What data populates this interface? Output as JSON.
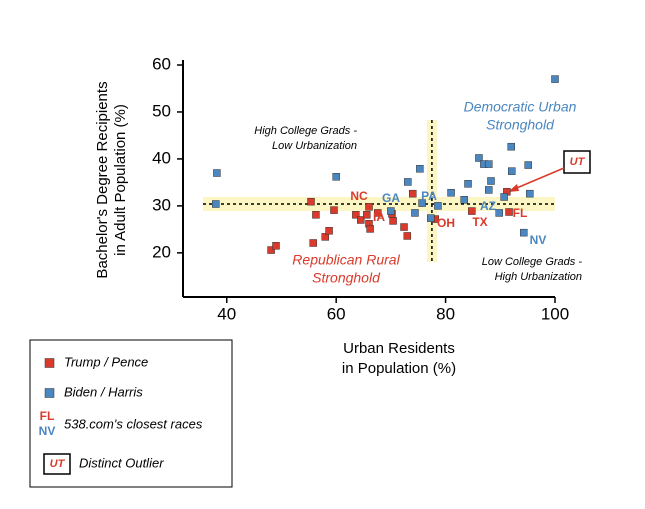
{
  "chart_data": {
    "type": "scatter",
    "x_label": [
      "Urban Residents",
      "in Population (%)"
    ],
    "y_label": [
      "Bachelor's Degree Recipients",
      "in Adult Population (%)"
    ],
    "xlim": [
      32,
      100
    ],
    "ylim": [
      10.6,
      60
    ],
    "xticks": [
      40,
      60,
      80,
      100
    ],
    "yticks": [
      20,
      30,
      40,
      50,
      60
    ],
    "reference_lines": {
      "x": 77.5,
      "y": 30.4
    },
    "series": [
      {
        "name": "Trump / Pence",
        "color": "#d93a2b",
        "x": [
          48.1,
          49.0,
          55.4,
          56.3,
          55.8,
          58.0,
          58.7,
          59.6,
          63.6,
          64.5,
          65.6,
          66.0,
          66.0,
          66.2,
          67.6,
          70.2,
          70.4,
          72.4,
          73.0,
          74.0,
          78.1,
          84.8,
          91.2,
          91.6
        ],
        "values": [
          20.6,
          21.5,
          30.9,
          28.1,
          22.1,
          23.4,
          24.7,
          29.1,
          28.1,
          27.0,
          28.1,
          29.8,
          26.2,
          25.1,
          28.5,
          28.3,
          26.8,
          25.5,
          23.6,
          32.6,
          27.2,
          28.9,
          33.0,
          28.7
        ]
      },
      {
        "name": "Biden / Harris",
        "color": "#4a86c0",
        "x": [
          38.2,
          38.0,
          60.0,
          70.0,
          73.1,
          74.4,
          75.3,
          75.7,
          77.3,
          78.6,
          81.0,
          83.4,
          84.1,
          86.1,
          87.0,
          87.9,
          88.3,
          87.9,
          89.8,
          90.7,
          92.0,
          92.1,
          95.1,
          94.3,
          95.4,
          100
        ],
        "values": [
          37.0,
          30.4,
          36.2,
          28.9,
          35.1,
          28.5,
          37.9,
          30.6,
          27.4,
          30.0,
          32.8,
          31.3,
          34.7,
          40.2,
          38.9,
          38.9,
          35.3,
          33.4,
          28.5,
          31.9,
          42.6,
          37.4,
          38.7,
          24.3,
          32.6,
          57
        ]
      }
    ],
    "state_labels": [
      {
        "text": "NC",
        "party": 0
      },
      {
        "text": "GA",
        "party": 1
      },
      {
        "text": "PA",
        "party": 1
      },
      {
        "text": "IA",
        "party": 0
      },
      {
        "text": "OH",
        "party": 0
      },
      {
        "text": "AZ",
        "party": 1
      },
      {
        "text": "TX",
        "party": 0
      },
      {
        "text": "FL",
        "party": 0
      },
      {
        "text": "NV",
        "party": 1
      }
    ],
    "annotations": {
      "high_low": [
        "High College Grads -",
        "Low Urbanization"
      ],
      "dem": [
        "Democratic Urban",
        "Stronghold"
      ],
      "rep": [
        "Republican Rural",
        "Stronghold"
      ],
      "low_high": [
        "Low College Grads -",
        "High Urbanization"
      ],
      "outlier": "UT"
    },
    "legend_extra": {
      "close_top": "FL",
      "close_bottom": "NV",
      "close_text": "538.com's closest races",
      "outlier_box": "UT",
      "outlier_text": "Distinct Outlier"
    }
  }
}
